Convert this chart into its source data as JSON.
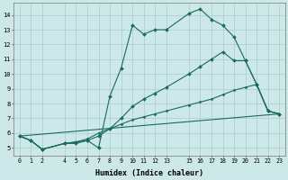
{
  "xlabel": "Humidex (Indice chaleur)",
  "bg_color": "#cce8e8",
  "grid_color": "#b0d0d0",
  "line_color": "#1a6b5a",
  "xlim": [
    -0.5,
    23.5
  ],
  "ylim": [
    4.5,
    14.8
  ],
  "xticks": [
    0,
    1,
    2,
    4,
    5,
    6,
    7,
    8,
    9,
    10,
    11,
    12,
    13,
    15,
    16,
    17,
    18,
    19,
    20,
    21,
    22,
    23
  ],
  "yticks": [
    5,
    6,
    7,
    8,
    9,
    10,
    11,
    12,
    13,
    14
  ],
  "series": [
    {
      "x": [
        0,
        1,
        2,
        4,
        5,
        6,
        7,
        8,
        9,
        10,
        11,
        12,
        13,
        15,
        16,
        17,
        18,
        19,
        20,
        21,
        22,
        23
      ],
      "y": [
        5.8,
        5.5,
        4.9,
        5.3,
        5.3,
        5.5,
        5.0,
        8.5,
        10.4,
        13.3,
        12.7,
        13.0,
        13.0,
        14.1,
        14.4,
        13.7,
        13.3,
        12.5,
        10.9,
        9.3,
        7.5,
        7.3
      ],
      "style": "solid_marker"
    },
    {
      "x": [
        0,
        1,
        2,
        4,
        5,
        6,
        7,
        8,
        9,
        10,
        11,
        12,
        13,
        15,
        16,
        17,
        18,
        19,
        20,
        21,
        22,
        23
      ],
      "y": [
        5.8,
        5.5,
        4.9,
        5.3,
        5.4,
        5.5,
        5.8,
        6.3,
        7.0,
        7.8,
        8.3,
        8.7,
        9.1,
        10.0,
        10.5,
        11.0,
        11.5,
        10.9,
        10.9,
        9.3,
        7.5,
        7.3
      ],
      "style": "solid_marker"
    },
    {
      "x": [
        0,
        23
      ],
      "y": [
        5.8,
        7.3
      ],
      "style": "straight"
    },
    {
      "x": [
        0,
        1,
        2,
        4,
        5,
        6,
        7,
        8,
        9,
        10,
        11,
        12,
        13,
        15,
        16,
        17,
        18,
        19,
        20,
        21,
        22,
        23
      ],
      "y": [
        5.8,
        5.5,
        4.9,
        5.3,
        5.4,
        5.6,
        6.0,
        6.3,
        6.6,
        6.9,
        7.1,
        7.3,
        7.5,
        7.9,
        8.1,
        8.3,
        8.6,
        8.9,
        9.1,
        9.3,
        7.5,
        7.3
      ],
      "style": "dashed_small"
    }
  ]
}
